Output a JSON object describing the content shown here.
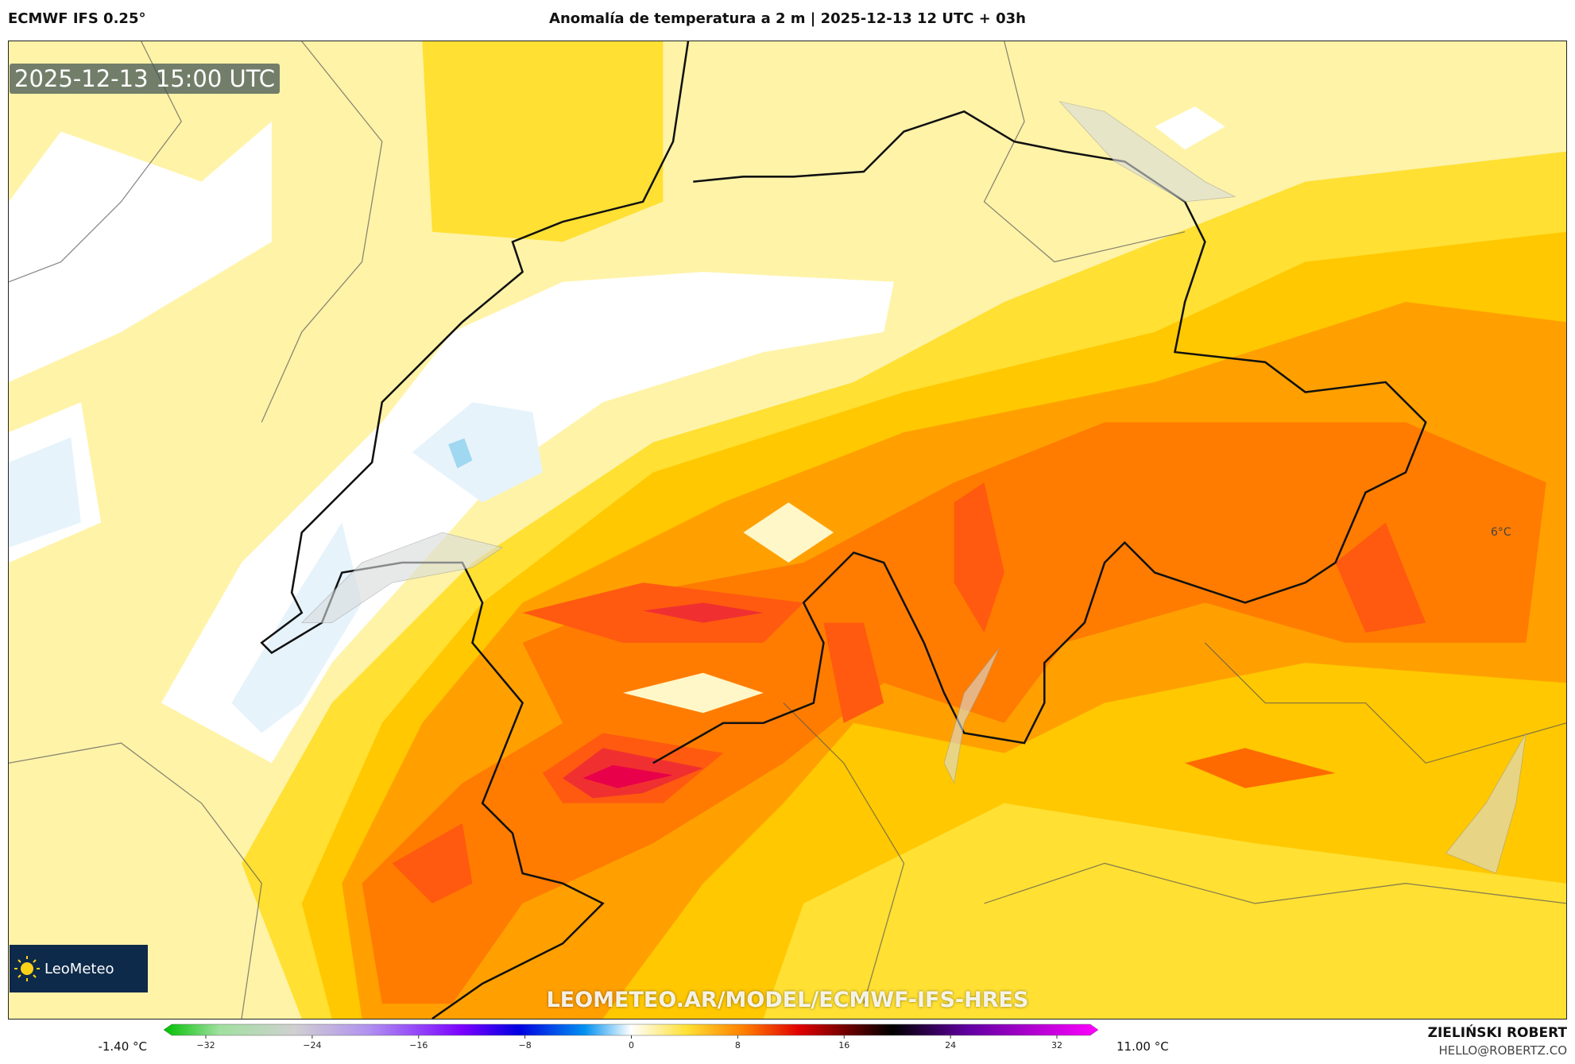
{
  "header": {
    "left": "ECMWF IFS 0.25°",
    "title": "Anomalía de temperatura a 2 m | 2025-12-13 12 UTC + 03h"
  },
  "map": {
    "timestamp": "2025-12-13 15:00 UTC",
    "contour_label": "6°C",
    "logo": "LeoMeteo",
    "watermark": "LEOMETEO.AR/MODEL/ECMWF-IFS-HRES"
  },
  "colorbar": {
    "min_label": "-1.40 °C",
    "max_label": "11.00 °C",
    "lim": [
      -32,
      32
    ],
    "ticks": [
      {
        "value": -32,
        "label": "−32"
      },
      {
        "value": -24,
        "label": "−24"
      },
      {
        "value": -16,
        "label": "−16"
      },
      {
        "value": -8,
        "label": "−8"
      },
      0,
      8,
      16,
      24,
      32
    ]
  },
  "footer": {
    "author": "ZIELIŃSKI ROBERT",
    "email": "HELLO@ROBERTZ.CO"
  }
}
